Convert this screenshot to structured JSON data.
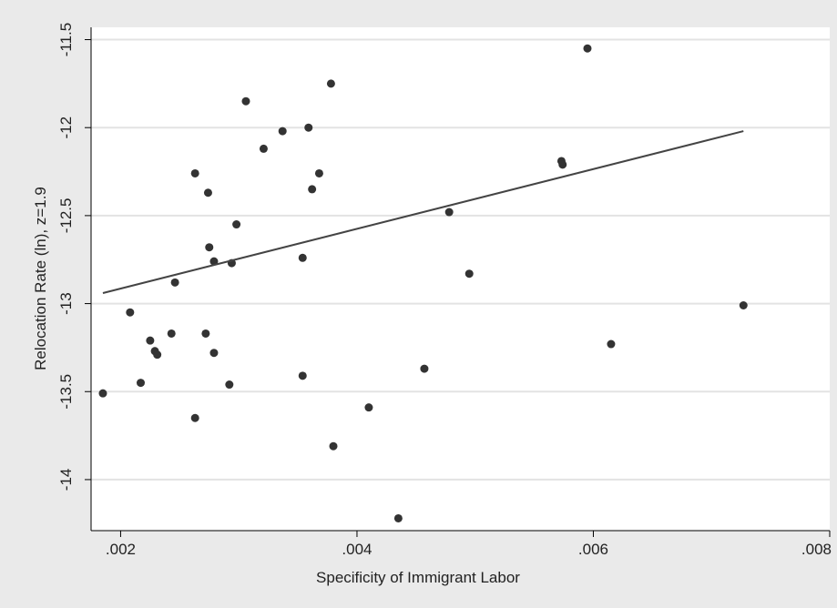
{
  "chart_data": {
    "type": "scatter",
    "x_label": "Specificity of Immigrant Labor",
    "y_label": "Relocation Rate (ln), z=1.9",
    "x": [
      0.00185,
      0.00208,
      0.00217,
      0.00225,
      0.00229,
      0.00231,
      0.00243,
      0.00246,
      0.00263,
      0.00263,
      0.00274,
      0.00275,
      0.00272,
      0.00279,
      0.00279,
      0.00294,
      0.00292,
      0.00298,
      0.00306,
      0.00321,
      0.00337,
      0.00354,
      0.00354,
      0.00359,
      0.00362,
      0.00368,
      0.00378,
      0.0038,
      0.0041,
      0.00435,
      0.00457,
      0.00478,
      0.00495,
      0.00573,
      0.00574,
      0.00595,
      0.00615,
      0.00727
    ],
    "values": [
      -13.51,
      -13.05,
      -13.45,
      -13.21,
      -13.27,
      -13.29,
      -13.17,
      -12.88,
      -12.26,
      -13.65,
      -12.37,
      -12.68,
      -13.17,
      -12.76,
      -13.28,
      -12.77,
      -13.46,
      -12.55,
      -11.85,
      -12.12,
      -12.02,
      -12.74,
      -13.41,
      -12.0,
      -12.35,
      -12.26,
      -11.75,
      -13.81,
      -13.59,
      -14.22,
      -13.37,
      -12.48,
      -12.83,
      -12.19,
      -12.21,
      -11.55,
      -13.23,
      -13.01
    ],
    "color": "#333333",
    "fit_line": {
      "x": [
        0.00185,
        0.00727
      ],
      "y": [
        -12.94,
        -12.02
      ],
      "color": "#444444"
    },
    "xlim": [
      0.00175,
      0.008
    ],
    "ylim": [
      -14.29,
      -11.43
    ],
    "xticks": [
      {
        "value": 0.002,
        "label": ".002"
      },
      {
        "value": 0.004,
        "label": ".004"
      },
      {
        "value": 0.006,
        "label": ".006"
      },
      {
        "value": 0.008,
        "label": ".008"
      }
    ],
    "yticks": [
      -14,
      -13.5,
      -13,
      -12.5,
      -12,
      -11.5
    ],
    "grid": true
  }
}
